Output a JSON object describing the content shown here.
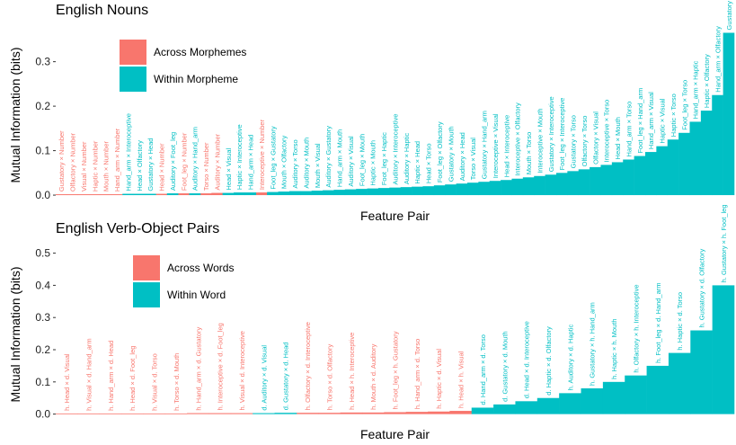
{
  "chart_data": [
    {
      "type": "bar",
      "title": "English Nouns",
      "xlabel": "Feature Pair",
      "ylabel": "Mutual Information (bits)",
      "categories": [
        "Gustatory × Number",
        "Olfactory × Number",
        "Visual × Number",
        "Haptic × Number",
        "Mouth × Number",
        "Hand_arm × Number",
        "Hand_arm × Interoceptive",
        "Head × Olfactory",
        "Gustatory × Head",
        "Head × Number",
        "Auditory × Foot_leg",
        "Foot_leg × Number",
        "Auditory × Hand_arm",
        "Torso × Number",
        "Auditory × Number",
        "Head × Visual",
        "Haptic × Interoceptive",
        "Hand_arm × Head",
        "Interoceptive × Number",
        "Foot_leg × Gustatory",
        "Mouth × Olfactory",
        "Auditory × Torso",
        "Auditory × Mouth",
        "Mouth × Visual",
        "Auditory × Gustatory",
        "Hand_arm × Mouth",
        "Auditory × Visual",
        "Foot_leg × Mouth",
        "Haptic × Mouth",
        "Foot_leg × Haptic",
        "Auditory × Interoceptive",
        "Auditory × Haptic",
        "Haptic × Head",
        "Head × Torso",
        "Foot_leg × Olfactory",
        "Gustatory × Mouth",
        "Auditory × Head",
        "Torso × Visual",
        "Gustatory × Hand_arm",
        "Interoceptive × Visual",
        "Head × Interoceptive",
        "Interoceptive × Olfactory",
        "Mouth × Torso",
        "Interoceptive × Mouth",
        "Gustatory × Interoceptive",
        "Foot_leg × Interoceptive",
        "Gustatory × Torso",
        "Olfactory × Torso",
        "Olfactory × Visual",
        "Interoceptive × Torso",
        "Head × Mouth",
        "Hand_arm × Torso",
        "Foot_leg × Hand_arm",
        "Hand_arm × Visual",
        "Haptic × Visual",
        "Haptic × Torso",
        "Foot_leg × Torso",
        "Hand_arm × Haptic",
        "Haptic × Olfactory",
        "Hand_arm × Olfactory",
        "Gustatory × Olfactory"
      ],
      "series": [
        {
          "name": "Across Morphemes",
          "color": "#f8766d",
          "values": [
            0.002,
            0.002,
            0.002,
            0.002,
            0.002,
            0.002,
            null,
            null,
            null,
            0.003,
            null,
            0.004,
            null,
            0.004,
            0.005,
            null,
            null,
            null,
            0.006,
            null,
            null,
            null,
            null,
            null,
            null,
            null,
            null,
            null,
            null,
            null,
            null,
            null,
            null,
            null,
            null,
            null,
            null,
            null,
            null,
            null,
            null,
            null,
            null,
            null,
            null,
            null,
            null,
            null,
            null,
            null,
            null,
            null,
            null,
            null,
            null,
            null,
            null,
            null,
            null,
            null,
            null
          ]
        },
        {
          "name": "Within Morpheme",
          "color": "#00bfc4",
          "values": [
            null,
            null,
            null,
            null,
            null,
            null,
            0.003,
            0.003,
            0.003,
            null,
            0.004,
            null,
            0.004,
            null,
            null,
            0.005,
            0.006,
            0.006,
            null,
            0.007,
            0.008,
            0.009,
            0.009,
            0.01,
            0.011,
            0.012,
            0.013,
            0.014,
            0.015,
            0.016,
            0.017,
            0.018,
            0.019,
            0.02,
            0.022,
            0.024,
            0.026,
            0.028,
            0.03,
            0.032,
            0.034,
            0.037,
            0.04,
            0.043,
            0.046,
            0.05,
            0.054,
            0.058,
            0.063,
            0.068,
            0.074,
            0.08,
            0.088,
            0.097,
            0.11,
            0.125,
            0.14,
            0.165,
            0.19,
            0.225,
            0.365
          ]
        }
      ],
      "ylim": [
        -0.01,
        0.37
      ],
      "yticks": [
        {
          "value": 0,
          "label": "0.0"
        },
        0.1,
        0.2,
        0.3
      ]
    },
    {
      "type": "bar",
      "title": "English Verb-Object Pairs",
      "xlabel": "Feature Pair",
      "ylabel": "Mutual Information (bits)",
      "categories": [
        "h. Head × d. Visual",
        "h. Visual × d. Hand_arm",
        "h. Hand_arm × d. Head",
        "h. Head × d. Foot_leg",
        "h. Visual × d. Torso",
        "h. Torso × d. Mouth",
        "h. Hand_arm × d. Gustatory",
        "h. Interoceptive × d. Foot_leg",
        "h. Visual × d. Interoceptive",
        "d. Auditory × d. Visual",
        "d. Gustatory × d. Head",
        "h. Olfactory × d. Interoceptive",
        "h. Torso × d. Olfactory",
        "h. Head × h. Interoceptive",
        "h. Mouth × d. Auditory",
        "h. Foot_leg × h. Gustatory",
        "h. Hand_arm × d. Torso",
        "h. Haptic × d. Visual",
        "h. Head × h. Visual",
        "d. Hand_arm × d. Torso",
        "d. Gustatory × d. Mouth",
        "d. Head × d. Interoceptive",
        "d. Haptic × d. Olfactory",
        "h. Auditory × d. Haptic",
        "h. Gustatory × h. Hand_arm",
        "h. Haptic × h. Mouth",
        "h. Olfactory × h. Interoceptive",
        "h. Foot_leg × d. Hand_arm",
        "h. Haptic × d. Torso",
        "h. Gustatory × d. Olfactory",
        "h. Gustatory × h. Foot_leg"
      ],
      "series": [
        {
          "name": "Across Words",
          "color": "#f8766d",
          "values": [
            0.002,
            0.002,
            0.002,
            0.002,
            0.002,
            0.002,
            0.003,
            0.003,
            0.003,
            null,
            null,
            0.004,
            0.004,
            0.005,
            0.005,
            0.006,
            0.007,
            0.008,
            0.01,
            null,
            null,
            null,
            null,
            null,
            null,
            null,
            null,
            null,
            null,
            null,
            null
          ]
        },
        {
          "name": "Within Word",
          "color": "#00bfc4",
          "values": [
            null,
            null,
            null,
            null,
            null,
            null,
            null,
            null,
            null,
            0.003,
            0.004,
            null,
            null,
            null,
            null,
            null,
            null,
            null,
            null,
            0.02,
            0.03,
            0.04,
            0.05,
            0.065,
            0.08,
            0.1,
            0.12,
            0.15,
            0.19,
            0.26,
            0.4
          ]
        }
      ],
      "ylim": [
        -0.015,
        0.51
      ],
      "yticks": [
        {
          "value": 0,
          "label": "0.0"
        },
        0.1,
        0.2,
        0.3,
        0.4,
        0.5
      ]
    }
  ]
}
